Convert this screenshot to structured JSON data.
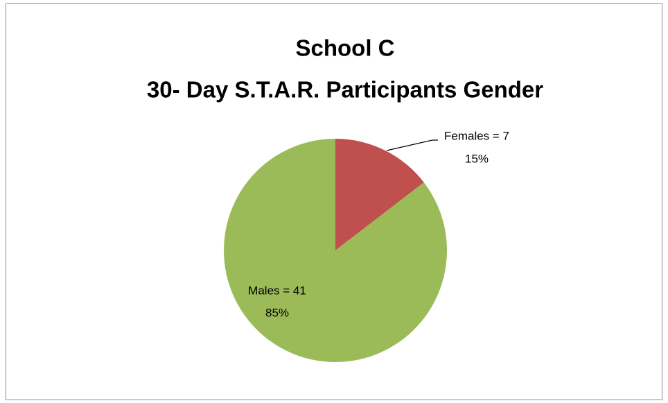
{
  "chart_data": {
    "type": "pie",
    "title": "School C",
    "subtitle": "30- Day S.T.A.R. Participants Gender",
    "categories": [
      "Females",
      "Males"
    ],
    "values": [
      7,
      41
    ],
    "value_labels": [
      "Females = 7",
      "Males = 41"
    ],
    "percent_labels": [
      "15%",
      "85%"
    ],
    "colors": [
      "#c0504d",
      "#9bbb59"
    ]
  }
}
